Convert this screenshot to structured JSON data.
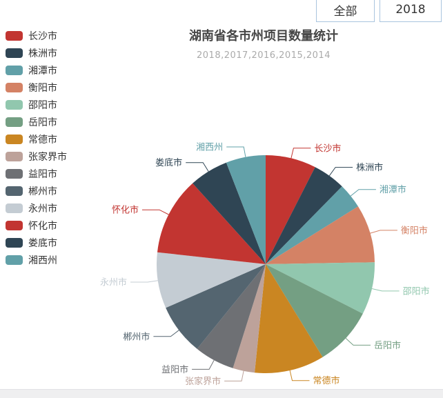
{
  "page": {
    "background": "#ffffff",
    "bottom_bar_color": "#efeff0"
  },
  "toolbar": {
    "border_color": "#a9c4de",
    "buttons": [
      {
        "label": "全部"
      },
      {
        "label": "2018"
      }
    ]
  },
  "chart_data": {
    "type": "pie",
    "title": "湖南省各市州项目数量统计",
    "subtitle": "2018,2017,2016,2015,2014",
    "legend_position": "left",
    "start_angle_deg": 0,
    "clockwise": true,
    "label_color_follows_slice": true,
    "slices": [
      {
        "name": "长沙市",
        "color": "#c23531",
        "angle_deg": 27.0,
        "percent": 7.5
      },
      {
        "name": "株洲市",
        "color": "#2f4554",
        "angle_deg": 17.5,
        "percent": 4.9
      },
      {
        "name": "湘潭市",
        "color": "#61a0a8",
        "angle_deg": 13.5,
        "percent": 3.8
      },
      {
        "name": "衡阳市",
        "color": "#d48265",
        "angle_deg": 31.0,
        "percent": 8.6
      },
      {
        "name": "邵阳市",
        "color": "#91c7ae",
        "angle_deg": 28.0,
        "percent": 7.8
      },
      {
        "name": "岳阳市",
        "color": "#749f83",
        "angle_deg": 31.5,
        "percent": 8.7
      },
      {
        "name": "常德市",
        "color": "#ca8622",
        "angle_deg": 37.3,
        "percent": 10.4
      },
      {
        "name": "张家界市",
        "color": "#bda29a",
        "angle_deg": 11.7,
        "percent": 3.2
      },
      {
        "name": "益阳市",
        "color": "#6e7074",
        "angle_deg": 21.5,
        "percent": 6.0
      },
      {
        "name": "郴州市",
        "color": "#546570",
        "angle_deg": 27.4,
        "percent": 7.6
      },
      {
        "name": "永州市",
        "color": "#c4ccd3",
        "angle_deg": 29.9,
        "percent": 8.3
      },
      {
        "name": "怀化市",
        "color": "#c23531",
        "angle_deg": 41.6,
        "percent": 11.6
      },
      {
        "name": "娄底市",
        "color": "#2f4554",
        "angle_deg": 20.9,
        "percent": 5.8
      },
      {
        "name": "湘西州",
        "color": "#61a0a8",
        "angle_deg": 21.2,
        "percent": 5.9
      }
    ]
  }
}
